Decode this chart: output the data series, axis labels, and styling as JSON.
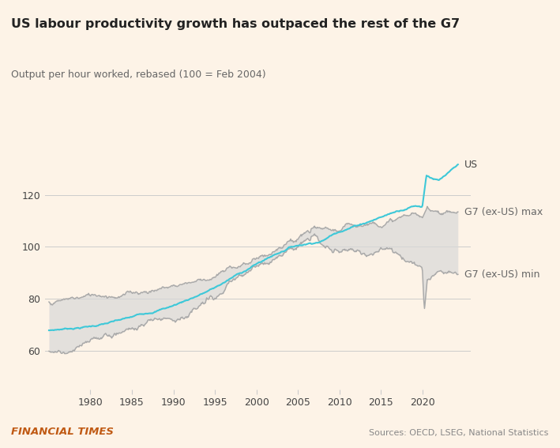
{
  "title": "US labour productivity growth has outpaced the rest of the G7",
  "subtitle": "Output per hour worked, rebased (100 = Feb 2004)",
  "footer_left": "FINANCIAL TIMES",
  "footer_right": "Sources: OECD, LSEG, National Statistics",
  "background_color": "#fdf3e7",
  "plot_bg_color": "#fdf3e7",
  "us_color": "#3ec8d8",
  "g7_band_fill_color": "#d8d8d8",
  "g7_line_color": "#aaaaaa",
  "label_text_color": "#555555",
  "title_color": "#222222",
  "ft_color": "#c05a14",
  "source_color": "#888888",
  "ylim": [
    45,
    145
  ],
  "yticks": [
    60,
    80,
    100,
    120
  ],
  "xlim_start": 1974.5,
  "xlim_end": 2025.8,
  "label_us": "US",
  "label_g7_max": "G7 (ex-US) max",
  "label_g7_min": "G7 (ex-US) min",
  "rebase_year": 2004.17
}
